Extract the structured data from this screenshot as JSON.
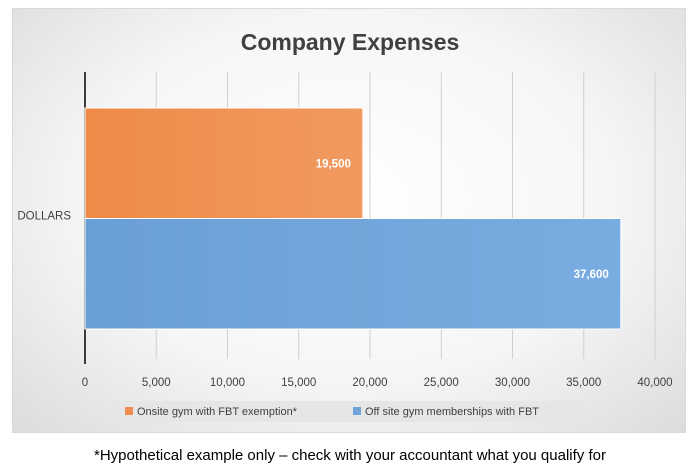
{
  "chart_data": {
    "type": "bar",
    "orientation": "horizontal",
    "title": "Company Expenses",
    "categories": [
      "DOLLARS"
    ],
    "series": [
      {
        "name": "Onsite gym with FBT exemption*",
        "values": [
          19500
        ],
        "value_label": "19,500",
        "color": "#ed8d4f"
      },
      {
        "name": "Off site gym memberships with FBT",
        "values": [
          37600
        ],
        "value_label": "37,600",
        "color": "#6fa3d9"
      }
    ],
    "xlim": [
      0,
      40000
    ],
    "x_ticks": [
      0,
      5000,
      10000,
      15000,
      20000,
      25000,
      30000,
      35000,
      40000
    ],
    "x_tick_labels": [
      "0",
      "5,000",
      "10,000",
      "15,000",
      "20,000",
      "25,000",
      "30,000",
      "35,000",
      "40,000"
    ],
    "grid": true,
    "legend_position": "bottom"
  },
  "footnote": "*Hypothetical example only – check with your accountant what you qualify for"
}
